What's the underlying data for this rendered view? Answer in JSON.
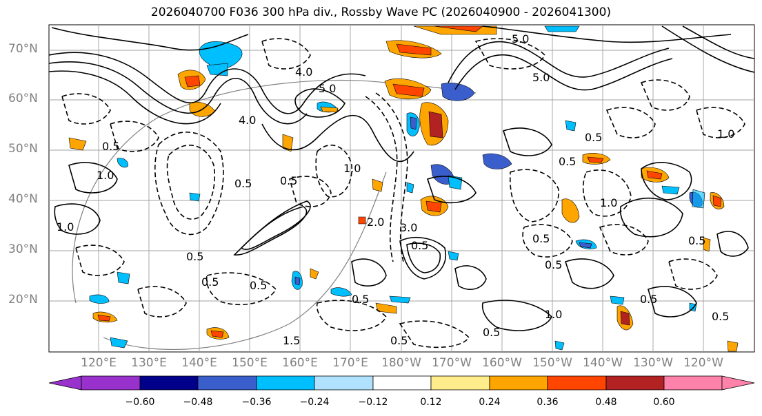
{
  "title": "2026040700 F036 300 hPa div., Rossby Wave PC (2026040900 - 2026041300)",
  "map": {
    "lat_labels": [
      "70°N",
      "60°N",
      "50°N",
      "40°N",
      "30°N",
      "20°N"
    ],
    "lon_labels": [
      "120°E",
      "130°E",
      "140°E",
      "150°E",
      "160°E",
      "170°E",
      "180°W",
      "170°W",
      "160°W",
      "150°W",
      "140°W",
      "130°W",
      "120°W"
    ],
    "contour_labels": [
      "5.0",
      "4.0",
      "5.0",
      "4.0",
      "5.0",
      "0.5",
      "0.5",
      "0.5",
      "1.0",
      "0.5",
      "0.5",
      "0.5",
      "1.0",
      "3.0",
      "2.0",
      "1.0",
      "0.5",
      "0.5",
      "0.5",
      "1.0",
      "0.5",
      "0.5",
      "1.5",
      "0.5",
      "0.5",
      "1.0",
      "0.5",
      "0.5",
      "1.0",
      "0.5",
      "0.5"
    ]
  },
  "colorbar": {
    "ticks": [
      "−0.60",
      "−0.48",
      "−0.36",
      "−0.24",
      "−0.12",
      "0.12",
      "0.24",
      "0.36",
      "0.48",
      "0.60"
    ],
    "colors": [
      "#9932cc",
      "#00008b",
      "#3a5fcd",
      "#00bfff",
      "#b0e2ff",
      "#ffffff",
      "#ffec8b",
      "#ffa500",
      "#ff4500",
      "#b22222",
      "#ff82ab"
    ]
  }
}
